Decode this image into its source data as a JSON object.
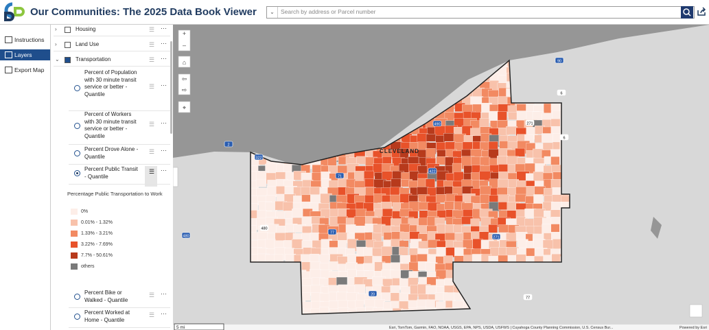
{
  "header": {
    "title": "Our Communities: The 2025 Data Book Viewer",
    "search_placeholder": "Search by address or Parcel number"
  },
  "nav": [
    "Instructions",
    "Layers",
    "Export Map"
  ],
  "layer_groups": [
    "Housing",
    "Land Use",
    "Transportation"
  ],
  "sublayers": [
    "Percent of Population with 30 minute transit service or better - Quantile",
    "Percent of Workers with 30 minute transit service or better - Quantile",
    "Percent Drove Alone - Quantile",
    "Percent Public Transit - Quantile",
    "Percent Bike or Walked - Quantile",
    "Percent Worked at Home - Quantile"
  ],
  "legend": {
    "title": "Percentage Public Transportation to Work",
    "items": [
      {
        "label": "0%",
        "color": "#fdeee8"
      },
      {
        "label": "0.01% - 1.32%",
        "color": "#f8c2ab"
      },
      {
        "label": "1.33% - 3.21%",
        "color": "#f28a62"
      },
      {
        "label": "3.22% - 7.69%",
        "color": "#e8522a"
      },
      {
        "label": "7.7% - 50.61%",
        "color": "#b73a1c"
      },
      {
        "label": "others",
        "color": "#7a7a7a"
      }
    ]
  },
  "map": {
    "city_label": "CLEVELAND",
    "scale": "5 mi",
    "attribution": "Esri, TomTom, Garmin, FAO, NOAA, USGS, EPA, NPS, USDA, USFWS | Cuyahoga County Planning Commission, U.S. Census Bur...",
    "powered_by": "Powered by Esri",
    "shields": [
      "90",
      "6",
      "2",
      "322",
      "6",
      "422",
      "490",
      "480",
      "77",
      "71",
      "271",
      "480",
      "271",
      "77",
      "20"
    ]
  }
}
